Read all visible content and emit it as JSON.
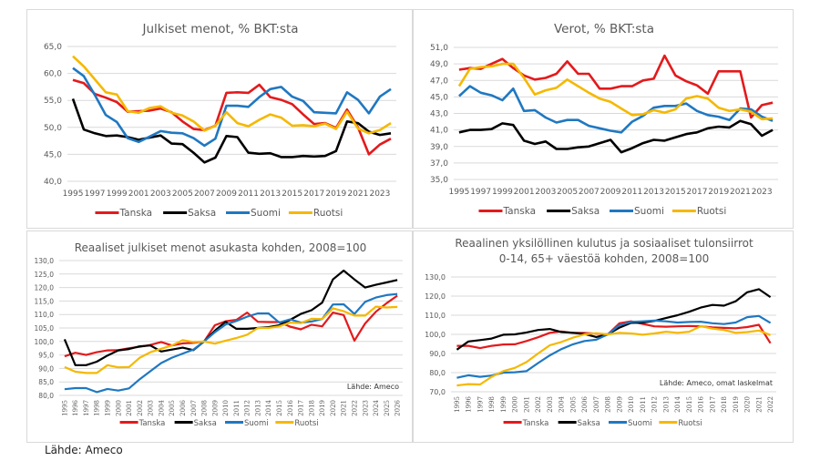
{
  "footer": "Lähde: Ameco",
  "colors": {
    "Tanska": "#e31a1c",
    "Saksa": "#000000",
    "Suomi": "#1f78c1",
    "Ruotsi": "#f5b800"
  },
  "chart_data": [
    {
      "id": "c1",
      "type": "line",
      "title": [
        "Julkiset menot, % BKT:sta"
      ],
      "xlabel": "",
      "ylabel": "",
      "x": [
        1995,
        1996,
        1997,
        1998,
        1999,
        2000,
        2001,
        2002,
        2003,
        2004,
        2005,
        2006,
        2007,
        2008,
        2009,
        2010,
        2011,
        2012,
        2013,
        2014,
        2015,
        2016,
        2017,
        2018,
        2019,
        2020,
        2021,
        2022,
        2023,
        2024
      ],
      "xticks": [
        "1995",
        "1997",
        "1999",
        "2001",
        "2003",
        "2005",
        "2007",
        "2009",
        "2011",
        "2013",
        "2015",
        "2017",
        "2019",
        "2021",
        "2023"
      ],
      "xtick_every": 2,
      "xtick_rotated": false,
      "ylim": [
        40,
        65
      ],
      "yticks": [
        "40,0",
        "45,0",
        "50,0",
        "55,0",
        "60,0",
        "65,0"
      ],
      "ystep": 5,
      "grid": true,
      "legend": "bottom",
      "source_note": "",
      "series": [
        {
          "name": "Tanska",
          "values": [
            58.8,
            58.2,
            56.2,
            55.5,
            54.7,
            52.9,
            53.0,
            53.1,
            53.5,
            52.8,
            51.1,
            49.7,
            49.5,
            50.3,
            56.4,
            56.5,
            56.4,
            57.9,
            55.6,
            55.1,
            54.3,
            52.4,
            50.6,
            50.8,
            49.9,
            53.3,
            50.0,
            45.0,
            46.8,
            47.9
          ]
        },
        {
          "name": "Saksa",
          "values": [
            55.3,
            49.6,
            48.9,
            48.4,
            48.5,
            48.2,
            47.7,
            48.1,
            48.5,
            47.0,
            46.9,
            45.3,
            43.5,
            44.4,
            48.4,
            48.2,
            45.3,
            45.1,
            45.2,
            44.5,
            44.5,
            44.7,
            44.6,
            44.7,
            45.6,
            51.1,
            50.8,
            49.2,
            48.6,
            48.9
          ]
        },
        {
          "name": "Suomi",
          "values": [
            61.0,
            59.5,
            56.0,
            52.3,
            51.0,
            48.0,
            47.3,
            48.3,
            49.3,
            49.0,
            48.9,
            48.0,
            46.6,
            47.9,
            54.0,
            54.0,
            53.8,
            55.6,
            57.1,
            57.5,
            55.7,
            54.9,
            52.8,
            52.7,
            52.6,
            56.5,
            55.1,
            52.6,
            55.7,
            57.1
          ]
        },
        {
          "name": "Ruotsi",
          "values": [
            63.2,
            61.3,
            58.9,
            56.5,
            56.1,
            53.0,
            52.7,
            53.6,
            53.9,
            52.7,
            52.2,
            51.1,
            49.4,
            50.3,
            52.8,
            50.8,
            50.2,
            51.4,
            52.4,
            51.8,
            50.3,
            50.4,
            50.2,
            50.7,
            49.7,
            52.9,
            49.8,
            48.9,
            49.5,
            50.8
          ]
        }
      ]
    },
    {
      "id": "c2",
      "type": "line",
      "title": [
        "Verot, % BKT:sta"
      ],
      "xlabel": "",
      "ylabel": "",
      "x": [
        1995,
        1996,
        1997,
        1998,
        1999,
        2000,
        2001,
        2002,
        2003,
        2004,
        2005,
        2006,
        2007,
        2008,
        2009,
        2010,
        2011,
        2012,
        2013,
        2014,
        2015,
        2016,
        2017,
        2018,
        2019,
        2020,
        2021,
        2022,
        2023,
        2024
      ],
      "xticks": [
        "1995",
        "1997",
        "1999",
        "2001",
        "2003",
        "2005",
        "2007",
        "2009",
        "2011",
        "2013",
        "2015",
        "2017",
        "2019",
        "2021",
        "2023"
      ],
      "xtick_every": 2,
      "xtick_rotated": false,
      "ylim": [
        35,
        51
      ],
      "yticks": [
        "35,0",
        "37,0",
        "39,0",
        "41,0",
        "43,0",
        "45,0",
        "47,0",
        "49,0",
        "51,0"
      ],
      "ystep": 2,
      "grid": true,
      "legend": "bottom",
      "source_note": "",
      "series": [
        {
          "name": "Tanska",
          "values": [
            48.3,
            48.5,
            48.4,
            49.0,
            49.6,
            48.5,
            47.6,
            47.1,
            47.3,
            47.8,
            49.3,
            47.8,
            47.8,
            46.0,
            46.0,
            46.3,
            46.3,
            47.0,
            47.2,
            50.0,
            47.6,
            46.9,
            46.4,
            45.4,
            48.1,
            48.1,
            48.1,
            42.5,
            44.0,
            44.3
          ]
        },
        {
          "name": "Saksa",
          "values": [
            40.7,
            41.0,
            41.0,
            41.1,
            41.8,
            41.6,
            39.7,
            39.3,
            39.6,
            38.7,
            38.7,
            38.9,
            39.0,
            39.4,
            39.8,
            38.3,
            38.8,
            39.4,
            39.8,
            39.7,
            40.1,
            40.5,
            40.7,
            41.2,
            41.4,
            41.3,
            42.1,
            41.7,
            40.3,
            41.0
          ]
        },
        {
          "name": "Suomi",
          "values": [
            45.1,
            46.3,
            45.5,
            45.2,
            44.6,
            46.0,
            43.3,
            43.4,
            42.5,
            41.9,
            42.2,
            42.2,
            41.5,
            41.2,
            40.9,
            40.7,
            42.0,
            42.7,
            43.7,
            43.9,
            43.9,
            44.2,
            43.3,
            42.8,
            42.6,
            42.2,
            43.6,
            43.5,
            42.6,
            42.1
          ]
        },
        {
          "name": "Ruotsi",
          "values": [
            46.3,
            48.4,
            48.6,
            48.7,
            49.0,
            49.0,
            47.3,
            45.3,
            45.8,
            46.1,
            47.1,
            46.3,
            45.5,
            44.8,
            44.4,
            43.6,
            42.8,
            42.9,
            43.4,
            43.1,
            43.5,
            44.8,
            45.1,
            44.8,
            43.7,
            43.3,
            43.5,
            43.2,
            42.3,
            42.4
          ]
        }
      ]
    },
    {
      "id": "c3",
      "type": "line",
      "title": [
        "Reaaliset julkiset menot asukasta kohden, 2008=100"
      ],
      "xlabel": "",
      "ylabel": "",
      "x": [
        1995,
        1996,
        1997,
        1998,
        1999,
        2000,
        2001,
        2002,
        2003,
        2004,
        2005,
        2006,
        2007,
        2008,
        2009,
        2010,
        2011,
        2012,
        2013,
        2014,
        2015,
        2016,
        2017,
        2018,
        2019,
        2020,
        2021,
        2022,
        2023,
        2024,
        2025,
        2026
      ],
      "xticks": [
        "1995",
        "1996",
        "1997",
        "1998",
        "1999",
        "2000",
        "2001",
        "2002",
        "2003",
        "2004",
        "2005",
        "2006",
        "2007",
        "2008",
        "2009",
        "2010",
        "2011",
        "2012",
        "2013",
        "2014",
        "2015",
        "2016",
        "2017",
        "2018",
        "2019",
        "2020",
        "2021",
        "2022",
        "2023",
        "2024",
        "2025",
        "2026"
      ],
      "xtick_every": 1,
      "xtick_rotated": true,
      "ylim": [
        80,
        130
      ],
      "yticks": [
        "80,0",
        "85,0",
        "90,0",
        "95,0",
        "100,0",
        "105,0",
        "110,0",
        "115,0",
        "120,0",
        "125,0",
        "130,0"
      ],
      "ystep": 5,
      "grid": true,
      "legend": "bottom",
      "source_note": "Lähde: Ameco",
      "series": [
        {
          "name": "Tanska",
          "values": [
            94.5,
            95.8,
            95.0,
            96.0,
            96.7,
            96.8,
            97.5,
            98.0,
            98.7,
            99.8,
            98.5,
            99.3,
            99.5,
            100.0,
            106.0,
            107.5,
            108.0,
            110.7,
            107.3,
            107.2,
            107.2,
            105.5,
            104.5,
            106.2,
            105.6,
            110.7,
            109.8,
            100.3,
            106.7,
            111.0,
            114.2,
            117.0
          ]
        },
        {
          "name": "Saksa",
          "values": [
            100.8,
            91.2,
            91.2,
            92.5,
            94.8,
            96.7,
            97.2,
            98.2,
            98.5,
            96.3,
            97.0,
            97.7,
            96.8,
            100.0,
            104.0,
            107.3,
            104.7,
            104.7,
            105.0,
            105.3,
            106.0,
            108.0,
            110.2,
            111.6,
            114.4,
            123.0,
            126.3,
            123.0,
            120.0,
            121.0,
            121.9,
            122.8
          ]
        },
        {
          "name": "Suomi",
          "values": [
            82.3,
            82.7,
            82.7,
            81.2,
            82.4,
            81.8,
            82.6,
            86.0,
            89.0,
            92.0,
            94.0,
            95.5,
            97.0,
            100.0,
            103.4,
            106.3,
            107.6,
            109.2,
            110.4,
            110.4,
            107.0,
            108.2,
            107.0,
            107.4,
            108.3,
            113.7,
            113.8,
            110.2,
            114.7,
            116.3,
            117.2,
            117.6
          ]
        },
        {
          "name": "Ruotsi",
          "values": [
            90.5,
            88.8,
            88.3,
            88.3,
            91.2,
            90.4,
            90.5,
            94.0,
            96.0,
            97.3,
            98.5,
            100.5,
            99.8,
            100.0,
            99.2,
            100.3,
            101.3,
            102.5,
            105.0,
            105.0,
            105.6,
            107.0,
            106.8,
            108.4,
            108.3,
            112.3,
            111.2,
            109.6,
            109.6,
            112.9,
            112.6,
            112.8
          ]
        }
      ]
    },
    {
      "id": "c4",
      "type": "line",
      "title": [
        "Reaalinen yksilöllinen kulutus ja sosiaaliset tulonsiirrot",
        "0-14, 65+ väestöä kohden, 2008=100"
      ],
      "xlabel": "",
      "ylabel": "",
      "x": [
        1995,
        1996,
        1997,
        1998,
        1999,
        2000,
        2001,
        2002,
        2003,
        2004,
        2005,
        2006,
        2007,
        2008,
        2009,
        2010,
        2011,
        2012,
        2013,
        2014,
        2015,
        2016,
        2017,
        2018,
        2019,
        2020,
        2021,
        2022
      ],
      "xticks": [
        "1995",
        "1996",
        "1997",
        "1998",
        "1999",
        "2000",
        "2001",
        "2002",
        "2003",
        "2004",
        "2005",
        "2006",
        "2007",
        "2008",
        "2009",
        "2010",
        "2011",
        "2012",
        "2013",
        "2014",
        "2015",
        "2016",
        "2017",
        "2018",
        "2019",
        "2020",
        "2021",
        "2022"
      ],
      "xtick_every": 1,
      "xtick_rotated": true,
      "ylim": [
        70,
        130
      ],
      "yticks": [
        "70,0",
        "80,0",
        "90,0",
        "100,0",
        "110,0",
        "120,0",
        "130,0"
      ],
      "ystep": 10,
      "grid": true,
      "legend": "bottom",
      "source_note": "Lähde: Ameco, omat laskelmat",
      "series": [
        {
          "name": "Tanska",
          "values": [
            94.0,
            94.0,
            92.8,
            94.0,
            94.7,
            94.8,
            96.5,
            98.5,
            100.8,
            101.5,
            100.8,
            100.7,
            100.4,
            100.0,
            105.8,
            106.8,
            105.5,
            104.2,
            104.0,
            104.2,
            104.4,
            104.2,
            103.6,
            103.4,
            103.2,
            103.8,
            105.0,
            95.4
          ]
        },
        {
          "name": "Saksa",
          "values": [
            92.0,
            96.3,
            97.0,
            97.8,
            99.8,
            100.0,
            101.0,
            102.3,
            102.8,
            101.2,
            100.8,
            100.2,
            98.6,
            100.0,
            103.5,
            106.0,
            106.2,
            107.0,
            108.5,
            110.0,
            111.8,
            114.0,
            115.4,
            115.0,
            117.3,
            122.0,
            123.6,
            119.5
          ]
        },
        {
          "name": "Suomi",
          "values": [
            77.3,
            78.6,
            77.8,
            78.5,
            80.0,
            80.2,
            80.8,
            85.0,
            89.0,
            92.3,
            94.8,
            96.5,
            97.2,
            100.0,
            104.8,
            106.5,
            106.8,
            107.2,
            106.8,
            106.2,
            106.5,
            106.6,
            105.8,
            105.4,
            106.2,
            109.0,
            109.6,
            106.0
          ]
        },
        {
          "name": "Ruotsi",
          "values": [
            73.3,
            74.0,
            73.8,
            77.8,
            80.8,
            82.5,
            85.5,
            90.0,
            94.3,
            96.0,
            98.3,
            100.0,
            100.6,
            100.0,
            100.8,
            100.5,
            99.8,
            100.5,
            101.4,
            100.8,
            101.4,
            104.3,
            103.0,
            102.3,
            100.8,
            101.2,
            102.0,
            99.6
          ]
        }
      ]
    }
  ]
}
